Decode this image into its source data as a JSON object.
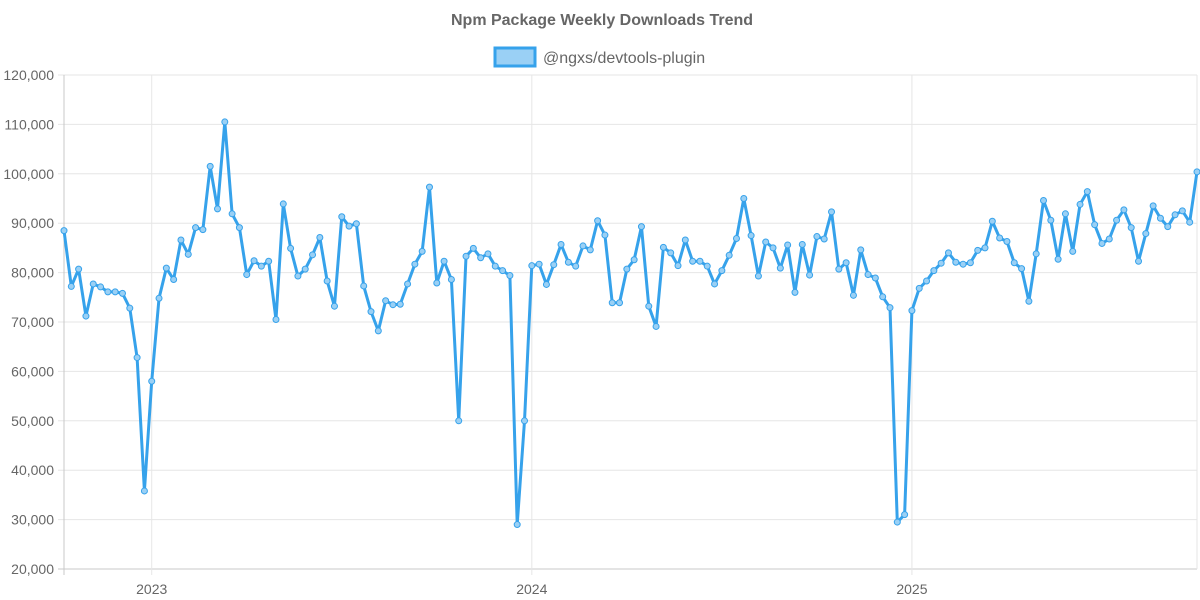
{
  "chart_data": {
    "type": "line",
    "title": "Npm Package Weekly Downloads Trend",
    "xlabel": "",
    "ylabel": "",
    "ylim": [
      20000,
      120000
    ],
    "y_ticks": [
      20000,
      30000,
      40000,
      50000,
      60000,
      70000,
      80000,
      90000,
      100000,
      110000,
      120000
    ],
    "y_tick_labels": [
      "20,000",
      "30,000",
      "40,000",
      "50,000",
      "60,000",
      "70,000",
      "80,000",
      "90,000",
      "100,000",
      "110,000",
      "120,000"
    ],
    "x_range_weeks": [
      0,
      155
    ],
    "x_ticks": [
      {
        "label": "2023",
        "week": 12
      },
      {
        "label": "2024",
        "week": 64
      },
      {
        "label": "2025",
        "week": 116
      }
    ],
    "legend": {
      "position": "top-center"
    },
    "grid": true,
    "series": [
      {
        "name": "@ngxs/devtools-plugin",
        "color": "#36a2eb",
        "fill_color": "#9ad0f5",
        "values": [
          88500,
          77200,
          80700,
          71200,
          77700,
          77100,
          76100,
          76100,
          75800,
          72800,
          62800,
          35800,
          58000,
          74800,
          80900,
          78600,
          86600,
          83700,
          89100,
          88700,
          101500,
          92900,
          110500,
          91900,
          89100,
          79600,
          82400,
          81300,
          82300,
          70500,
          93900,
          84900,
          79300,
          80700,
          83600,
          87100,
          78300,
          73200,
          91300,
          89400,
          89900,
          77300,
          72100,
          68200,
          74300,
          73500,
          73600,
          77700,
          81700,
          84300,
          97300,
          77900,
          82300,
          78600,
          50000,
          83300,
          84900,
          83000,
          83800,
          81300,
          80400,
          79400,
          29000,
          50000,
          81400,
          81700,
          77600,
          81600,
          85700,
          82100,
          81300,
          85400,
          84600,
          90500,
          87600,
          73900,
          73900,
          80700,
          82600,
          89300,
          73200,
          69100,
          85100,
          84000,
          81400,
          86600,
          82300,
          82300,
          81300,
          77700,
          80400,
          83500,
          86900,
          95000,
          87500,
          79300,
          86200,
          85000,
          80900,
          85600,
          76000,
          85700,
          79500,
          87300,
          86800,
          92300,
          80700,
          82000,
          75400,
          84600,
          79600,
          78900,
          75100,
          72900,
          29500,
          31000,
          72300,
          76800,
          78300,
          80400,
          81900,
          84000,
          82100,
          81700,
          82000,
          84500,
          85000,
          90400,
          87000,
          86300,
          82000,
          80800,
          74200,
          83800,
          94600,
          90600,
          82700,
          91900,
          84300,
          93800,
          96400,
          89700,
          85900,
          86800,
          90600,
          92700,
          89100,
          82300,
          87900,
          93500,
          91000,
          89300,
          91700,
          92500,
          90200,
          100400
        ]
      }
    ]
  }
}
